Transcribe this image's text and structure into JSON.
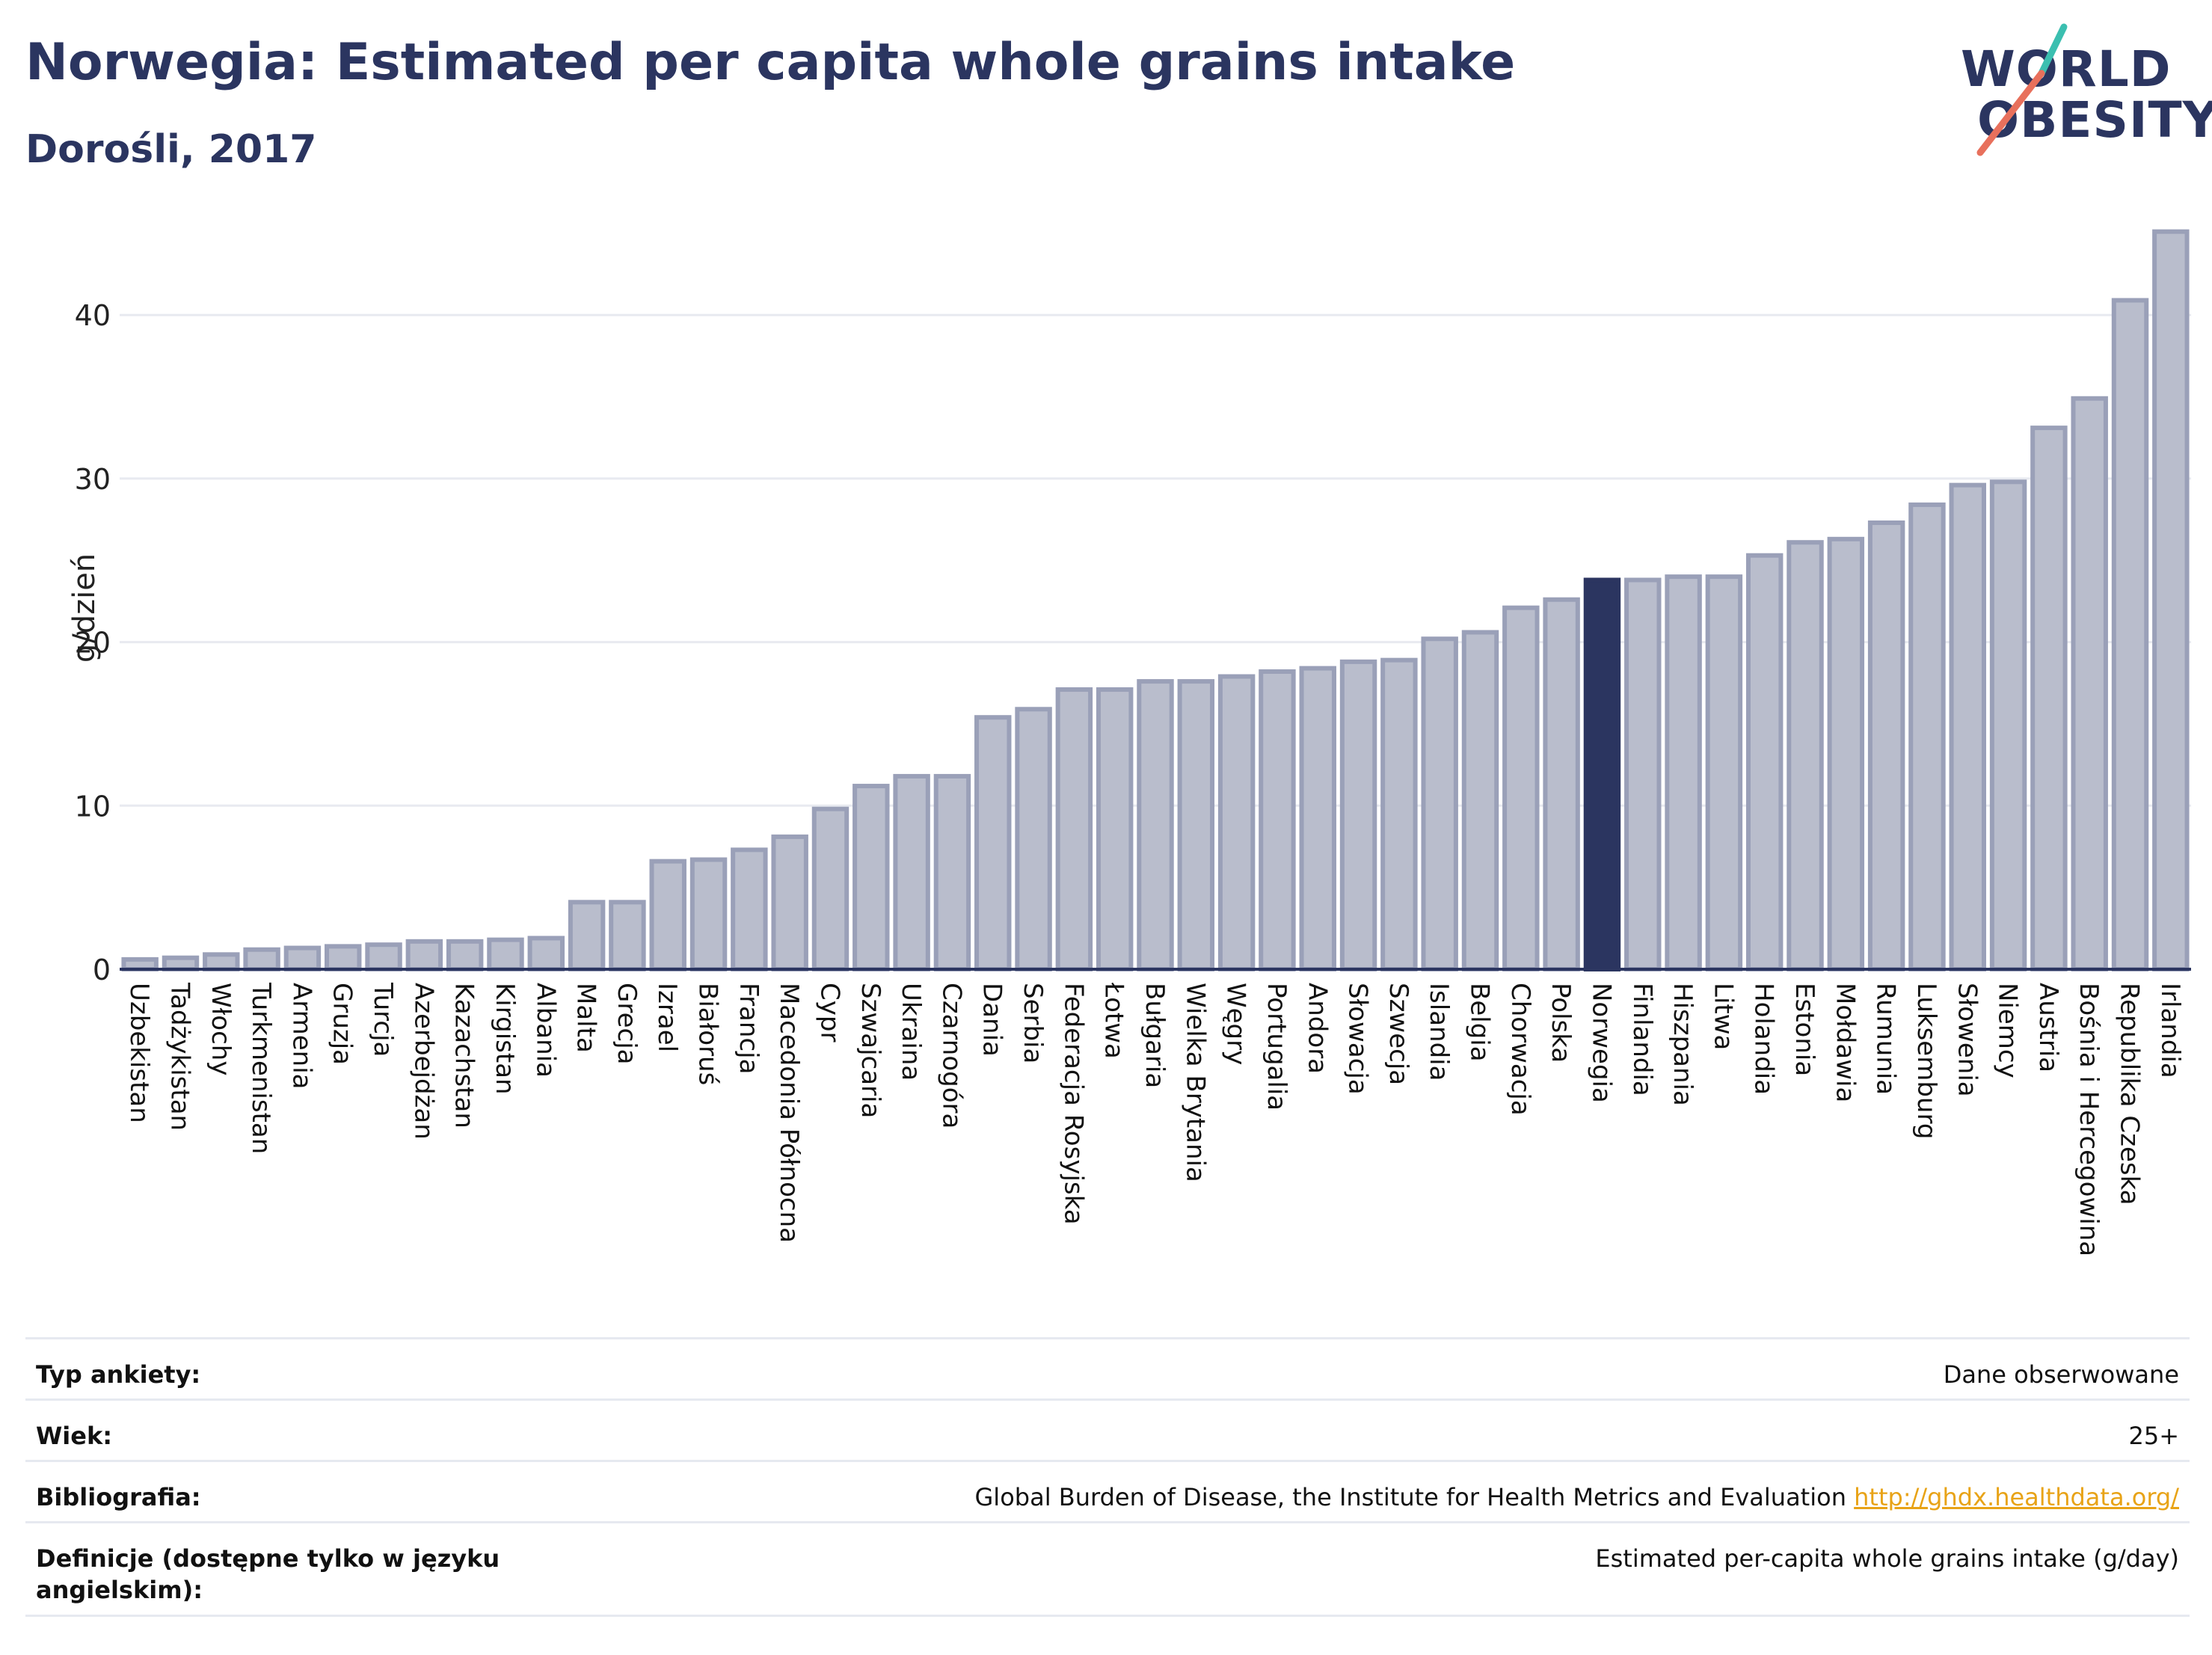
{
  "header": {
    "title": "Norwegia: Estimated per capita whole grains intake",
    "subtitle": "Dorośli, 2017"
  },
  "logo": {
    "line1": "WORLD",
    "line2": "OBESITY",
    "colors": {
      "text": "#2b3560",
      "slash_top": "#3bbfb0",
      "slash_bottom": "#e8705c"
    }
  },
  "colors": {
    "bar_fill": "#b9bdcc",
    "bar_stroke": "#9aa0b8",
    "highlight": "#2b3560",
    "grid": "#e8eaf0",
    "axis": "#2b3560",
    "link": "#e8a317"
  },
  "chart_data": {
    "type": "bar",
    "ylabel": "g/dzień",
    "xlabel": "",
    "ylim": [
      0,
      46
    ],
    "yticks": [
      0,
      10,
      20,
      30,
      40
    ],
    "grid": true,
    "highlight": "Norwegia",
    "categories": [
      "Uzbekistan",
      "Tadżykistan",
      "Włochy",
      "Turkmenistan",
      "Armenia",
      "Gruzja",
      "Turcja",
      "Azerbejdżan",
      "Kazachstan",
      "Kirgistan",
      "Albania",
      "Malta",
      "Grecja",
      "Izrael",
      "Białoruś",
      "Francja",
      "Macedonia Północna",
      "Cypr",
      "Szwajcaria",
      "Ukraina",
      "Czarnogóra",
      "Dania",
      "Serbia",
      "Federacja Rosyjska",
      "Łotwa",
      "Bułgaria",
      "Wielka Brytania",
      "Węgry",
      "Portugalia",
      "Andora",
      "Słowacja",
      "Szwecja",
      "Islandia",
      "Belgia",
      "Chorwacja",
      "Polska",
      "Norwegia",
      "Finlandia",
      "Hiszpania",
      "Litwa",
      "Holandia",
      "Estonia",
      "Mołdawia",
      "Rumunia",
      "Luksemburg",
      "Słowenia",
      "Niemcy",
      "Austria",
      "Bośnia i Hercegowina",
      "Republika Czeska",
      "Irlandia"
    ],
    "values": [
      0.6,
      0.7,
      0.9,
      1.2,
      1.3,
      1.4,
      1.5,
      1.7,
      1.7,
      1.8,
      1.9,
      4.1,
      4.1,
      6.6,
      6.7,
      7.3,
      8.1,
      9.8,
      11.2,
      11.8,
      11.8,
      15.4,
      15.9,
      17.1,
      17.1,
      17.6,
      17.6,
      17.9,
      18.2,
      18.4,
      18.8,
      18.9,
      20.2,
      20.6,
      22.1,
      22.6,
      23.8,
      23.8,
      24.0,
      24.0,
      25.3,
      26.1,
      26.3,
      27.3,
      28.4,
      29.6,
      29.8,
      33.1,
      34.9,
      40.9,
      45.1
    ]
  },
  "meta": [
    {
      "key": "Typ ankiety:",
      "value": "Dane obserwowane"
    },
    {
      "key": "Wiek:",
      "value": "25+"
    },
    {
      "key": "Bibliografia:",
      "value": "Global Burden of Disease, the Institute for Health Metrics and Evaluation",
      "link": "http://ghdx.healthdata.org/"
    },
    {
      "key": "Definicje (dostępne tylko w języku angielskim):",
      "value": "Estimated per-capita whole grains intake (g/day)"
    }
  ]
}
